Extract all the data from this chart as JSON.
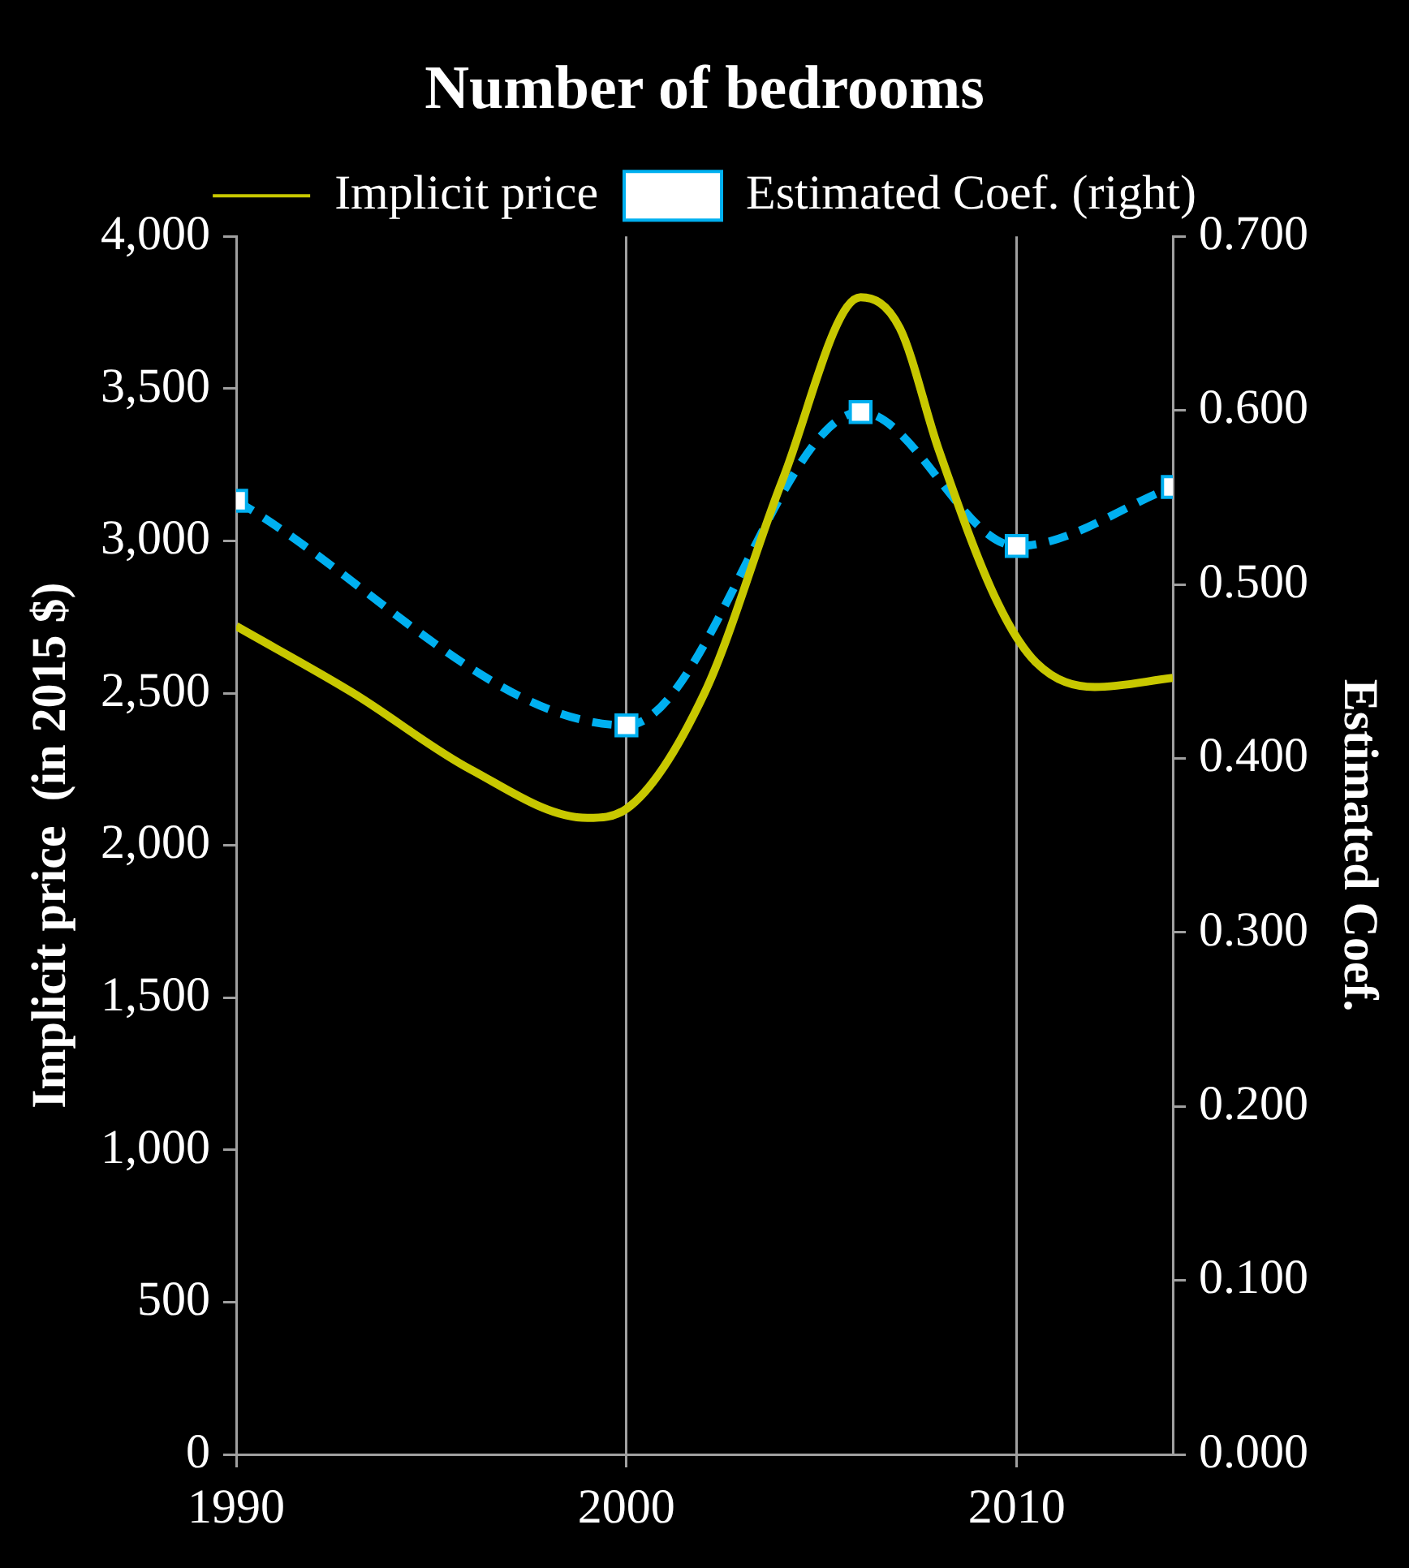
{
  "chart_data": {
    "type": "line",
    "title": "Number of bedrooms",
    "ylabel": "Implicit price  (in 2015 $)",
    "y2label": "Estimated Coef.",
    "series": [
      {
        "name": "Implicit price",
        "color": "#c8c800",
        "marker": "none",
        "line_style": "solid",
        "x": [
          1990,
          1993,
          1996,
          1999,
          2000,
          2002,
          2004,
          2006,
          2007,
          2008,
          2009.5,
          2010.5,
          2012,
          2014
        ],
        "values": [
          2720,
          2500,
          2250,
          2090,
          2120,
          2500,
          3200,
          3800,
          3700,
          3300,
          2800,
          2600,
          2520,
          2550
        ]
      },
      {
        "name": "Estimated Coef. (right)",
        "color": "#00b0f0",
        "marker": "square",
        "line_style": "dashed",
        "axis": "y2",
        "x": [
          1990,
          2000,
          2006,
          2010,
          2014
        ],
        "values": [
          0.548,
          0.419,
          0.599,
          0.522,
          0.556
        ]
      }
    ],
    "xlim": [
      1990,
      2014
    ],
    "xticks": [
      1990,
      2000,
      2010
    ],
    "ylim": [
      0,
      4000
    ],
    "yticks": [
      {
        "value": 0,
        "label": "0"
      },
      {
        "value": 500,
        "label": "500"
      },
      {
        "value": 1000,
        "label": "1,000"
      },
      {
        "value": 1500,
        "label": "1,500"
      },
      {
        "value": 2000,
        "label": "2,000"
      },
      {
        "value": 2500,
        "label": "2,500"
      },
      {
        "value": 3000,
        "label": "3,000"
      },
      {
        "value": 3500,
        "label": "3,500"
      },
      {
        "value": 4000,
        "label": "4,000"
      }
    ],
    "y2lim": [
      0,
      0.7
    ],
    "y2ticks": [
      {
        "value": 0,
        "label": "0.000"
      },
      {
        "value": 0.1,
        "label": "0.100"
      },
      {
        "value": 0.2,
        "label": "0.200"
      },
      {
        "value": 0.3,
        "label": "0.300"
      },
      {
        "value": 0.4,
        "label": "0.400"
      },
      {
        "value": 0.5,
        "label": "0.500"
      },
      {
        "value": 0.6,
        "label": "0.600"
      },
      {
        "value": 0.7,
        "label": "0.700"
      }
    ],
    "grid": "x",
    "legend": "top"
  }
}
